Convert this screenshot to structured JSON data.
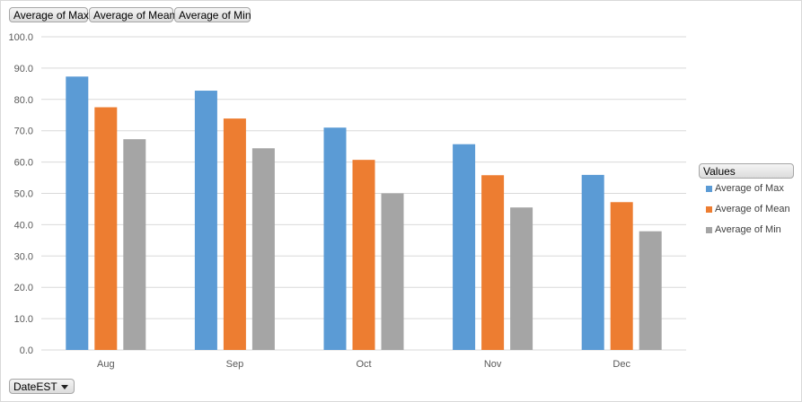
{
  "buttons": {
    "max": "Average of Max",
    "mean": "Average of Mean",
    "min": "Average of Min",
    "date": "DateEST"
  },
  "legend": {
    "title": "Values",
    "items": [
      {
        "label": "Average of Max",
        "color": "#5b9bd5"
      },
      {
        "label": "Average of Mean",
        "color": "#ed7d31"
      },
      {
        "label": "Average of Min",
        "color": "#a5a5a5"
      }
    ]
  },
  "chart_data": {
    "type": "bar",
    "categories": [
      "Aug",
      "Sep",
      "Oct",
      "Nov",
      "Dec"
    ],
    "series": [
      {
        "name": "Average of Max",
        "color": "#5b9bd5",
        "values": [
          87.3,
          82.8,
          71.0,
          65.7,
          55.9
        ]
      },
      {
        "name": "Average of Mean",
        "color": "#ed7d31",
        "values": [
          77.5,
          73.9,
          60.7,
          55.8,
          47.2
        ]
      },
      {
        "name": "Average of Min",
        "color": "#a5a5a5",
        "values": [
          67.3,
          64.4,
          50.0,
          45.5,
          37.9
        ]
      }
    ],
    "ylim": [
      0,
      100
    ],
    "yticks": [
      "0.0",
      "10.0",
      "20.0",
      "30.0",
      "40.0",
      "50.0",
      "60.0",
      "70.0",
      "80.0",
      "90.0",
      "100.0"
    ],
    "grid": true,
    "legend_position": "right"
  }
}
